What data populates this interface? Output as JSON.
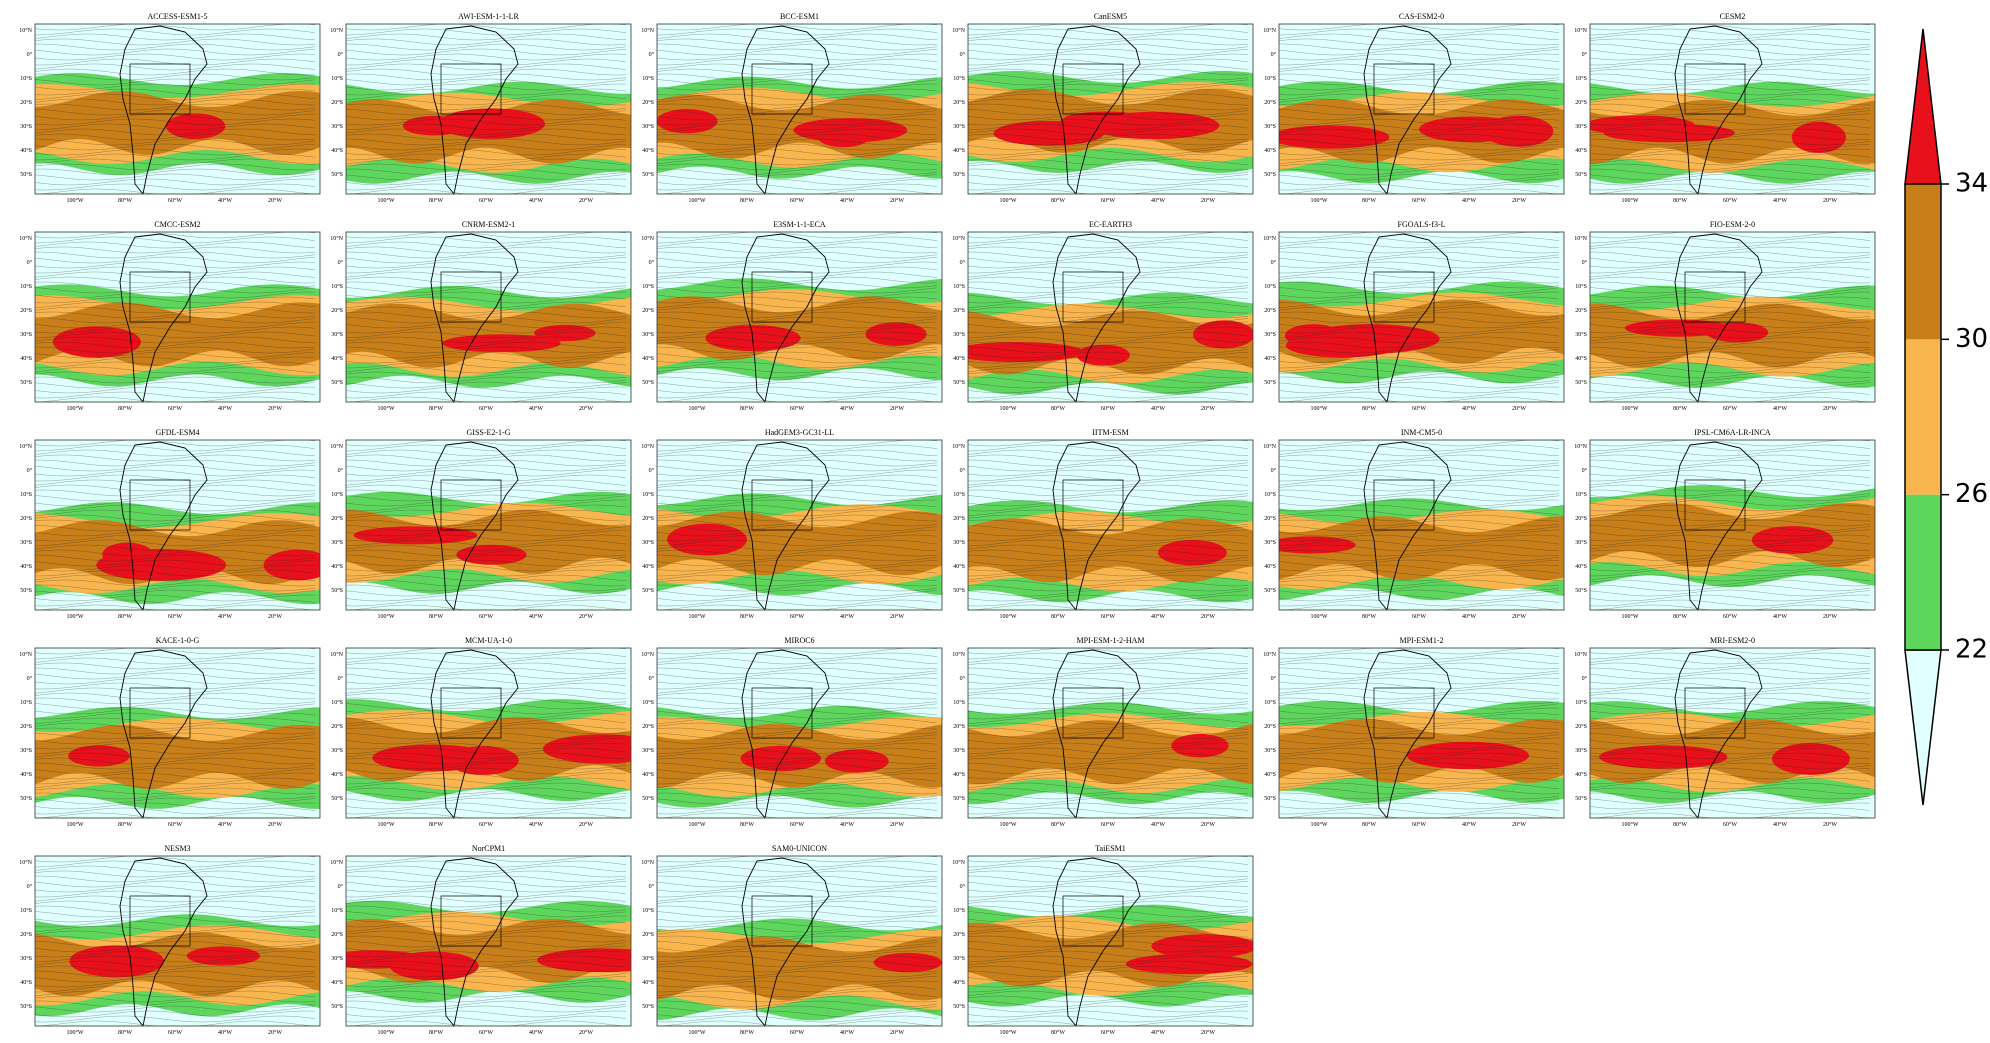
{
  "panels": [
    {
      "title": "ACCESS-ESM1-5"
    },
    {
      "title": "AWI-ESM-1-1-LR"
    },
    {
      "title": "BCC-ESM1"
    },
    {
      "title": "CanESM5"
    },
    {
      "title": "CAS-ESM2-0"
    },
    {
      "title": "CESM2"
    },
    {
      "title": "CMCC-ESM2"
    },
    {
      "title": "CNRM-ESM2-1"
    },
    {
      "title": "E3SM-1-1-ECA"
    },
    {
      "title": "EC-EARTH3"
    },
    {
      "title": "FGOALS-f3-L"
    },
    {
      "title": "FIO-ESM-2-0"
    },
    {
      "title": "GFDL-ESM4"
    },
    {
      "title": "GISS-E2-1-G"
    },
    {
      "title": "HadGEM3-GC31-LL"
    },
    {
      "title": "IITM-ESM"
    },
    {
      "title": "INM-CM5-0"
    },
    {
      "title": "IPSL-CM6A-LR-INCA"
    },
    {
      "title": "KACE-1-0-G"
    },
    {
      "title": "MCM-UA-1-0"
    },
    {
      "title": "MIROC6"
    },
    {
      "title": "MPI-ESM-1-2-HAM"
    },
    {
      "title": "MPI-ESM1-2"
    },
    {
      "title": "MRI-ESM2-0"
    },
    {
      "title": "NESM3"
    },
    {
      "title": "NorCPM1"
    },
    {
      "title": "SAM0-UNICON"
    },
    {
      "title": "TaiESM1"
    }
  ],
  "lat_labels": [
    "10°N",
    "0°",
    "10°S",
    "20°S",
    "30°S",
    "40°S",
    "50°S"
  ],
  "lon_labels": [
    "100°W",
    "80°W",
    "60°W",
    "40°W",
    "20°W"
  ],
  "colorbar": {
    "ticks": [
      22,
      26,
      30,
      34
    ],
    "colors": [
      "#e0ffff",
      "#5ed65e",
      "#f9b64f",
      "#c87f1a",
      "#e8101a"
    ]
  }
}
